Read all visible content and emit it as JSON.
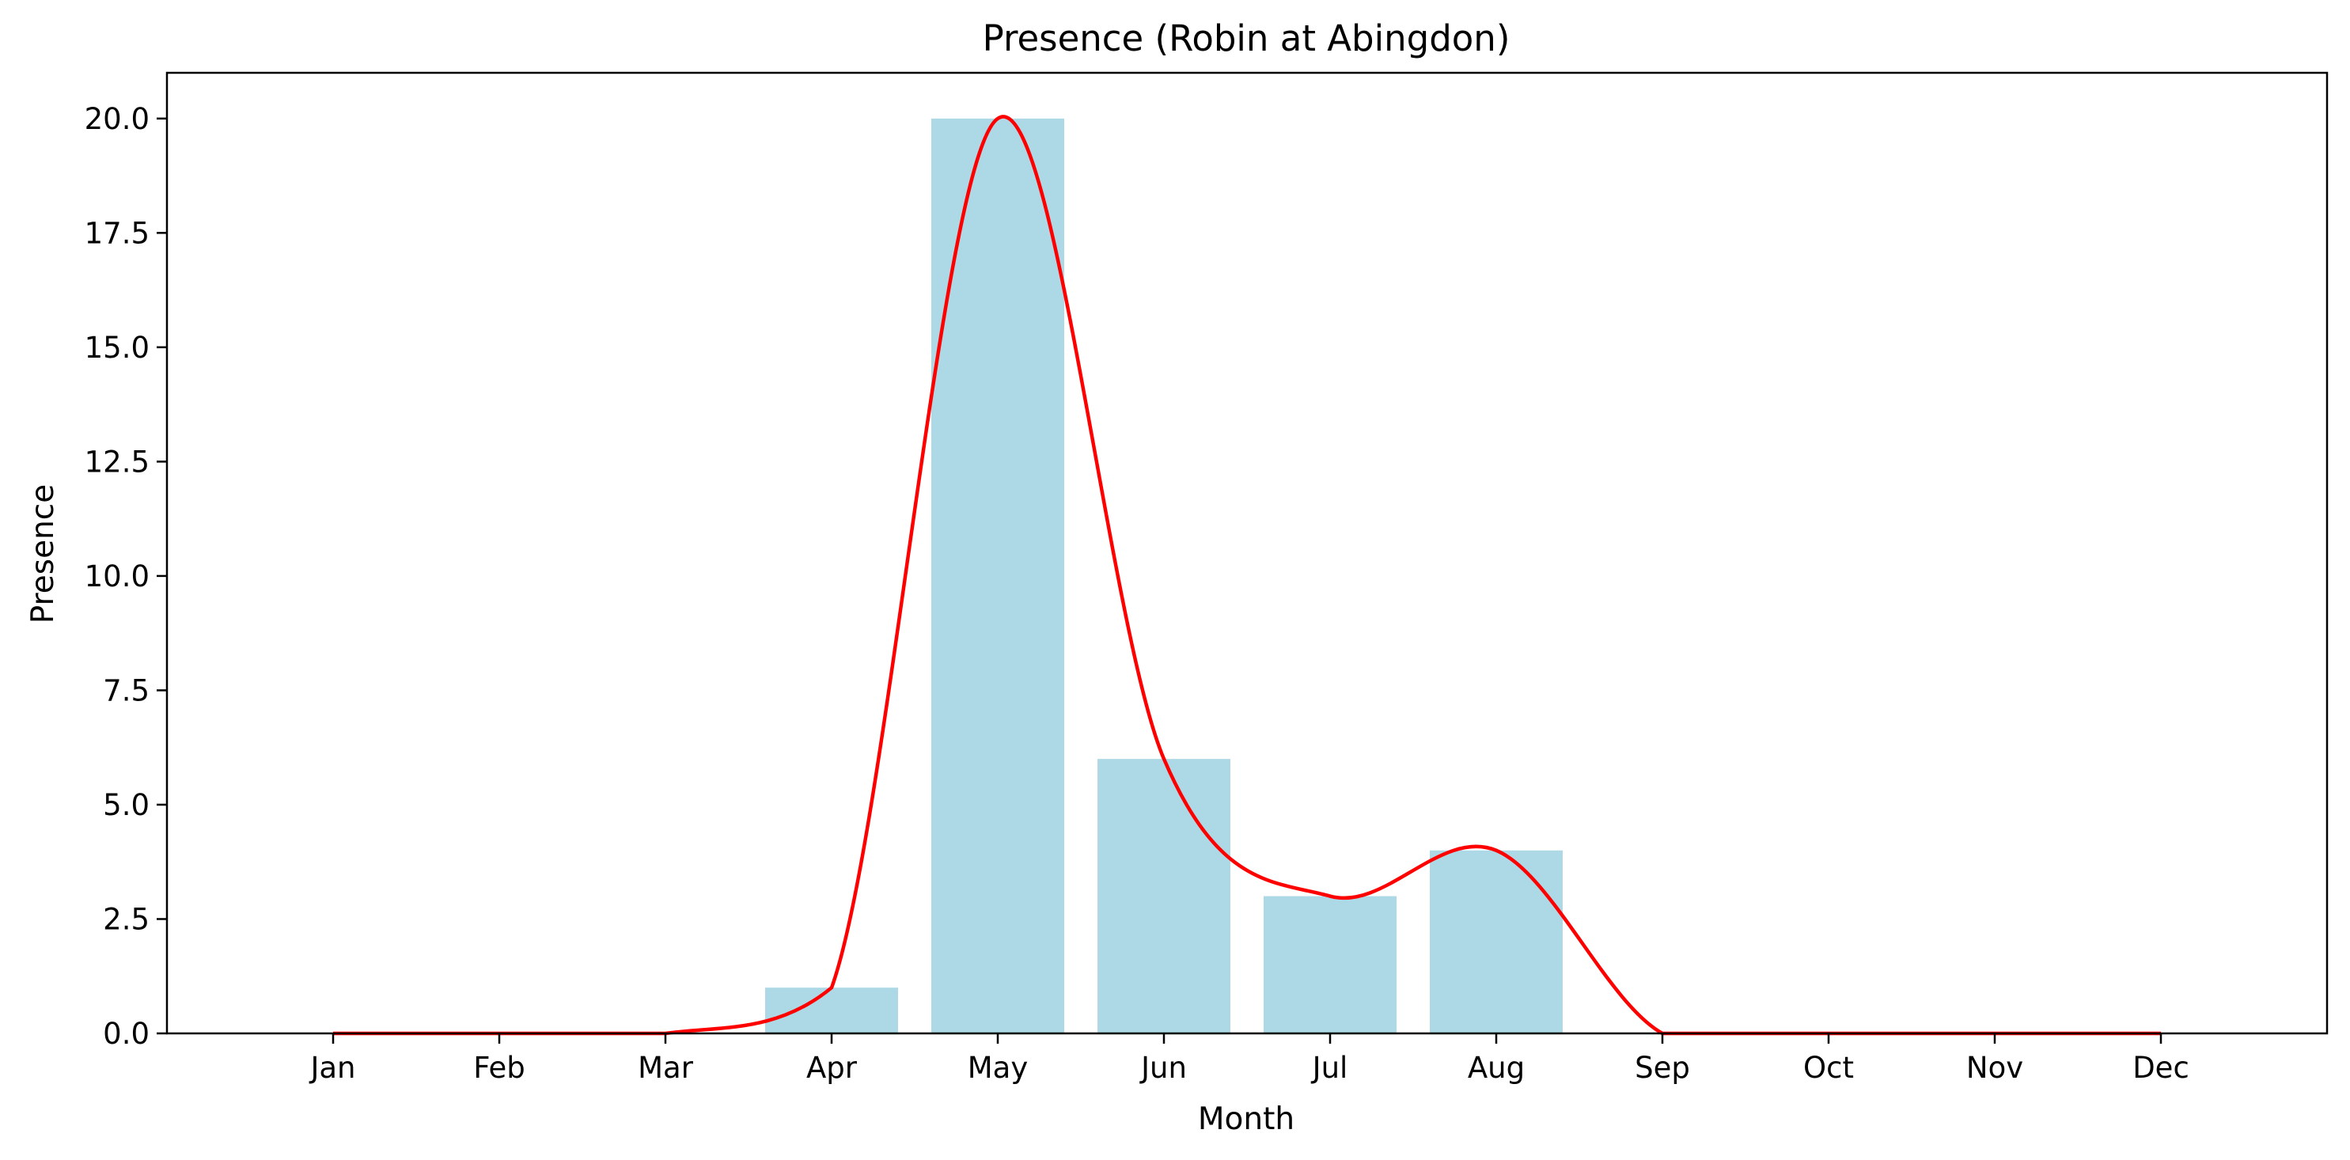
{
  "chart_data": {
    "type": "bar",
    "title": "Presence (Robin at Abingdon)",
    "xlabel": "Month",
    "ylabel": "Presence",
    "categories": [
      "Jan",
      "Feb",
      "Mar",
      "Apr",
      "May",
      "Jun",
      "Jul",
      "Aug",
      "Sep",
      "Oct",
      "Nov",
      "Dec"
    ],
    "series": [
      {
        "values": [
          0,
          0,
          0,
          1,
          20,
          6,
          3,
          4,
          0,
          0,
          0,
          0
        ],
        "color": "#add8e6",
        "type": "bar"
      },
      {
        "values": [
          0,
          0,
          0,
          1,
          20,
          6,
          3,
          4,
          0,
          0,
          0,
          0
        ],
        "color": "#ff0000",
        "type": "line",
        "smooth": true
      }
    ],
    "ylim": [
      0,
      21
    ],
    "yticks": [
      "0.0",
      "2.5",
      "5.0",
      "7.5",
      "10.0",
      "12.5",
      "15.0",
      "17.5",
      "20.0"
    ],
    "grid": false,
    "legend": "none"
  }
}
